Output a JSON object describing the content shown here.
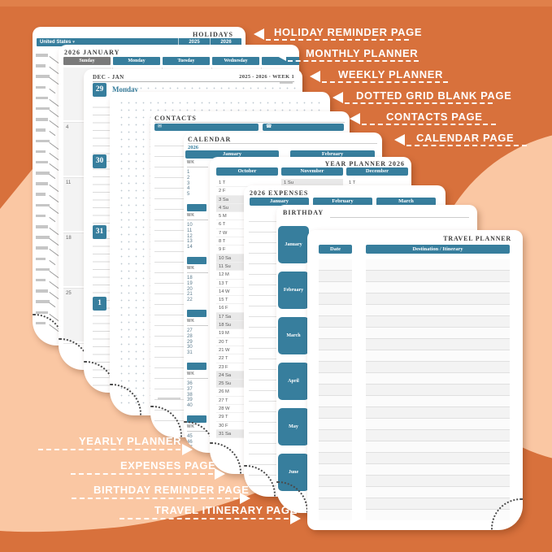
{
  "labels": {
    "right": [
      "HOLIDAY REMINDER PAGE",
      "MONTHLY PLANNER",
      "WEEKLY PLANNER",
      "DOTTED GRID BLANK PAGE",
      "CONTACTS PAGE",
      "CALENDAR PAGE"
    ],
    "bottom": [
      "YEARLY PLANNER",
      "EXPENSES PAGE",
      "BIRTHDAY REMINDER PAGE",
      "TRAVEL ITINERARY PAGE"
    ]
  },
  "pages": {
    "holidays": {
      "title": "HOLIDAYS",
      "country": "United States",
      "years": [
        "2025",
        "2026"
      ]
    },
    "monthly": {
      "title": "2026 JANUARY",
      "day_headers": [
        "Sunday",
        "Monday",
        "Tuesday",
        "Wednesday"
      ],
      "sunday_dates": [
        "4",
        "11",
        "18",
        "25"
      ]
    },
    "weekly": {
      "range": "DEC - JAN",
      "week_label": "2025 - 2026 · WEEK 1",
      "days": [
        {
          "date": "29",
          "name": "Monday"
        },
        {
          "date": "30",
          "name": ""
        },
        {
          "date": "31",
          "name": ""
        },
        {
          "date": "1",
          "name": ""
        }
      ]
    },
    "contacts": {
      "title": "CONTACTS"
    },
    "calendar": {
      "title": "CALENDAR",
      "year": "2026",
      "months": [
        "January",
        "February"
      ],
      "wk_label": "WK",
      "week_groups": [
        [
          "1",
          "2",
          "3",
          "4",
          "5"
        ],
        [
          "10",
          "11",
          "12",
          "13",
          "14"
        ],
        [
          "18",
          "19",
          "20",
          "21",
          "22"
        ],
        [
          "27",
          "28",
          "29",
          "30",
          "31"
        ],
        [
          "36",
          "37",
          "38",
          "39",
          "40"
        ],
        [
          "45",
          "46",
          "47",
          "48",
          "49"
        ]
      ]
    },
    "year_planner": {
      "title": "YEAR PLANNER 2026",
      "months": [
        "October",
        "November",
        "December"
      ],
      "october_days": [
        "1 T",
        "2 F",
        "3 Sa",
        "4 Su",
        "5 M",
        "6 T",
        "7 W",
        "8 T",
        "9 F",
        "10 Sa",
        "11 Su",
        "12 M",
        "13 T",
        "14 W",
        "15 T",
        "16 F",
        "17 Sa",
        "18 Su",
        "19 M",
        "20 T",
        "21 W",
        "22 T",
        "23 F",
        "24 Sa",
        "25 Su",
        "26 M",
        "27 T",
        "28 W",
        "29 T",
        "30 F",
        "31 Sa"
      ],
      "november_first": "1 Su",
      "december_first": "1 T"
    },
    "expenses": {
      "title": "2026 EXPENSES",
      "months": [
        "January",
        "February",
        "March"
      ]
    },
    "birthday": {
      "title": "BIRTHDAY",
      "month_tabs": [
        "January",
        "February",
        "March",
        "April",
        "May",
        "June"
      ]
    },
    "travel": {
      "title": "TRAVEL PLANNER",
      "columns": [
        "Date",
        "Destination / Itinerary"
      ]
    }
  },
  "icons": {
    "contacts_email": "✉",
    "contacts_phone": "☎",
    "country_caret": "▾"
  },
  "colors": {
    "background": "#D8713C",
    "peach": "#FAC7A3",
    "teal": "#377E9D",
    "sunday_gray": "#7A7A7A"
  }
}
